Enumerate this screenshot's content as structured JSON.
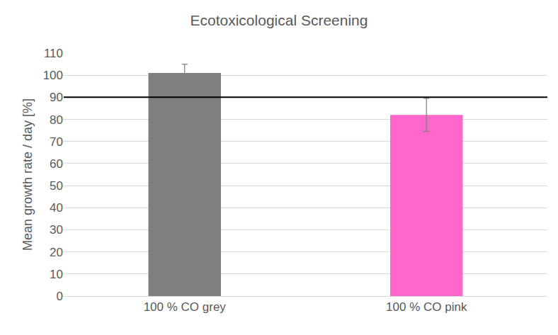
{
  "chart_data": {
    "type": "bar",
    "title": "Ecotoxicological Screening",
    "y_label": "Mean growth rate / day [%]",
    "categories": [
      "100 % CO grey",
      "100 % CO pink"
    ],
    "values": [
      101,
      82
    ],
    "errors": [
      4,
      7.5
    ],
    "colors": [
      "#7f7f7f",
      "#ff66cc"
    ],
    "threshold": 90,
    "ylim": [
      0,
      110
    ],
    "yticks": [
      0,
      10,
      20,
      30,
      40,
      50,
      60,
      70,
      80,
      90,
      100,
      110
    ],
    "grid": true
  }
}
